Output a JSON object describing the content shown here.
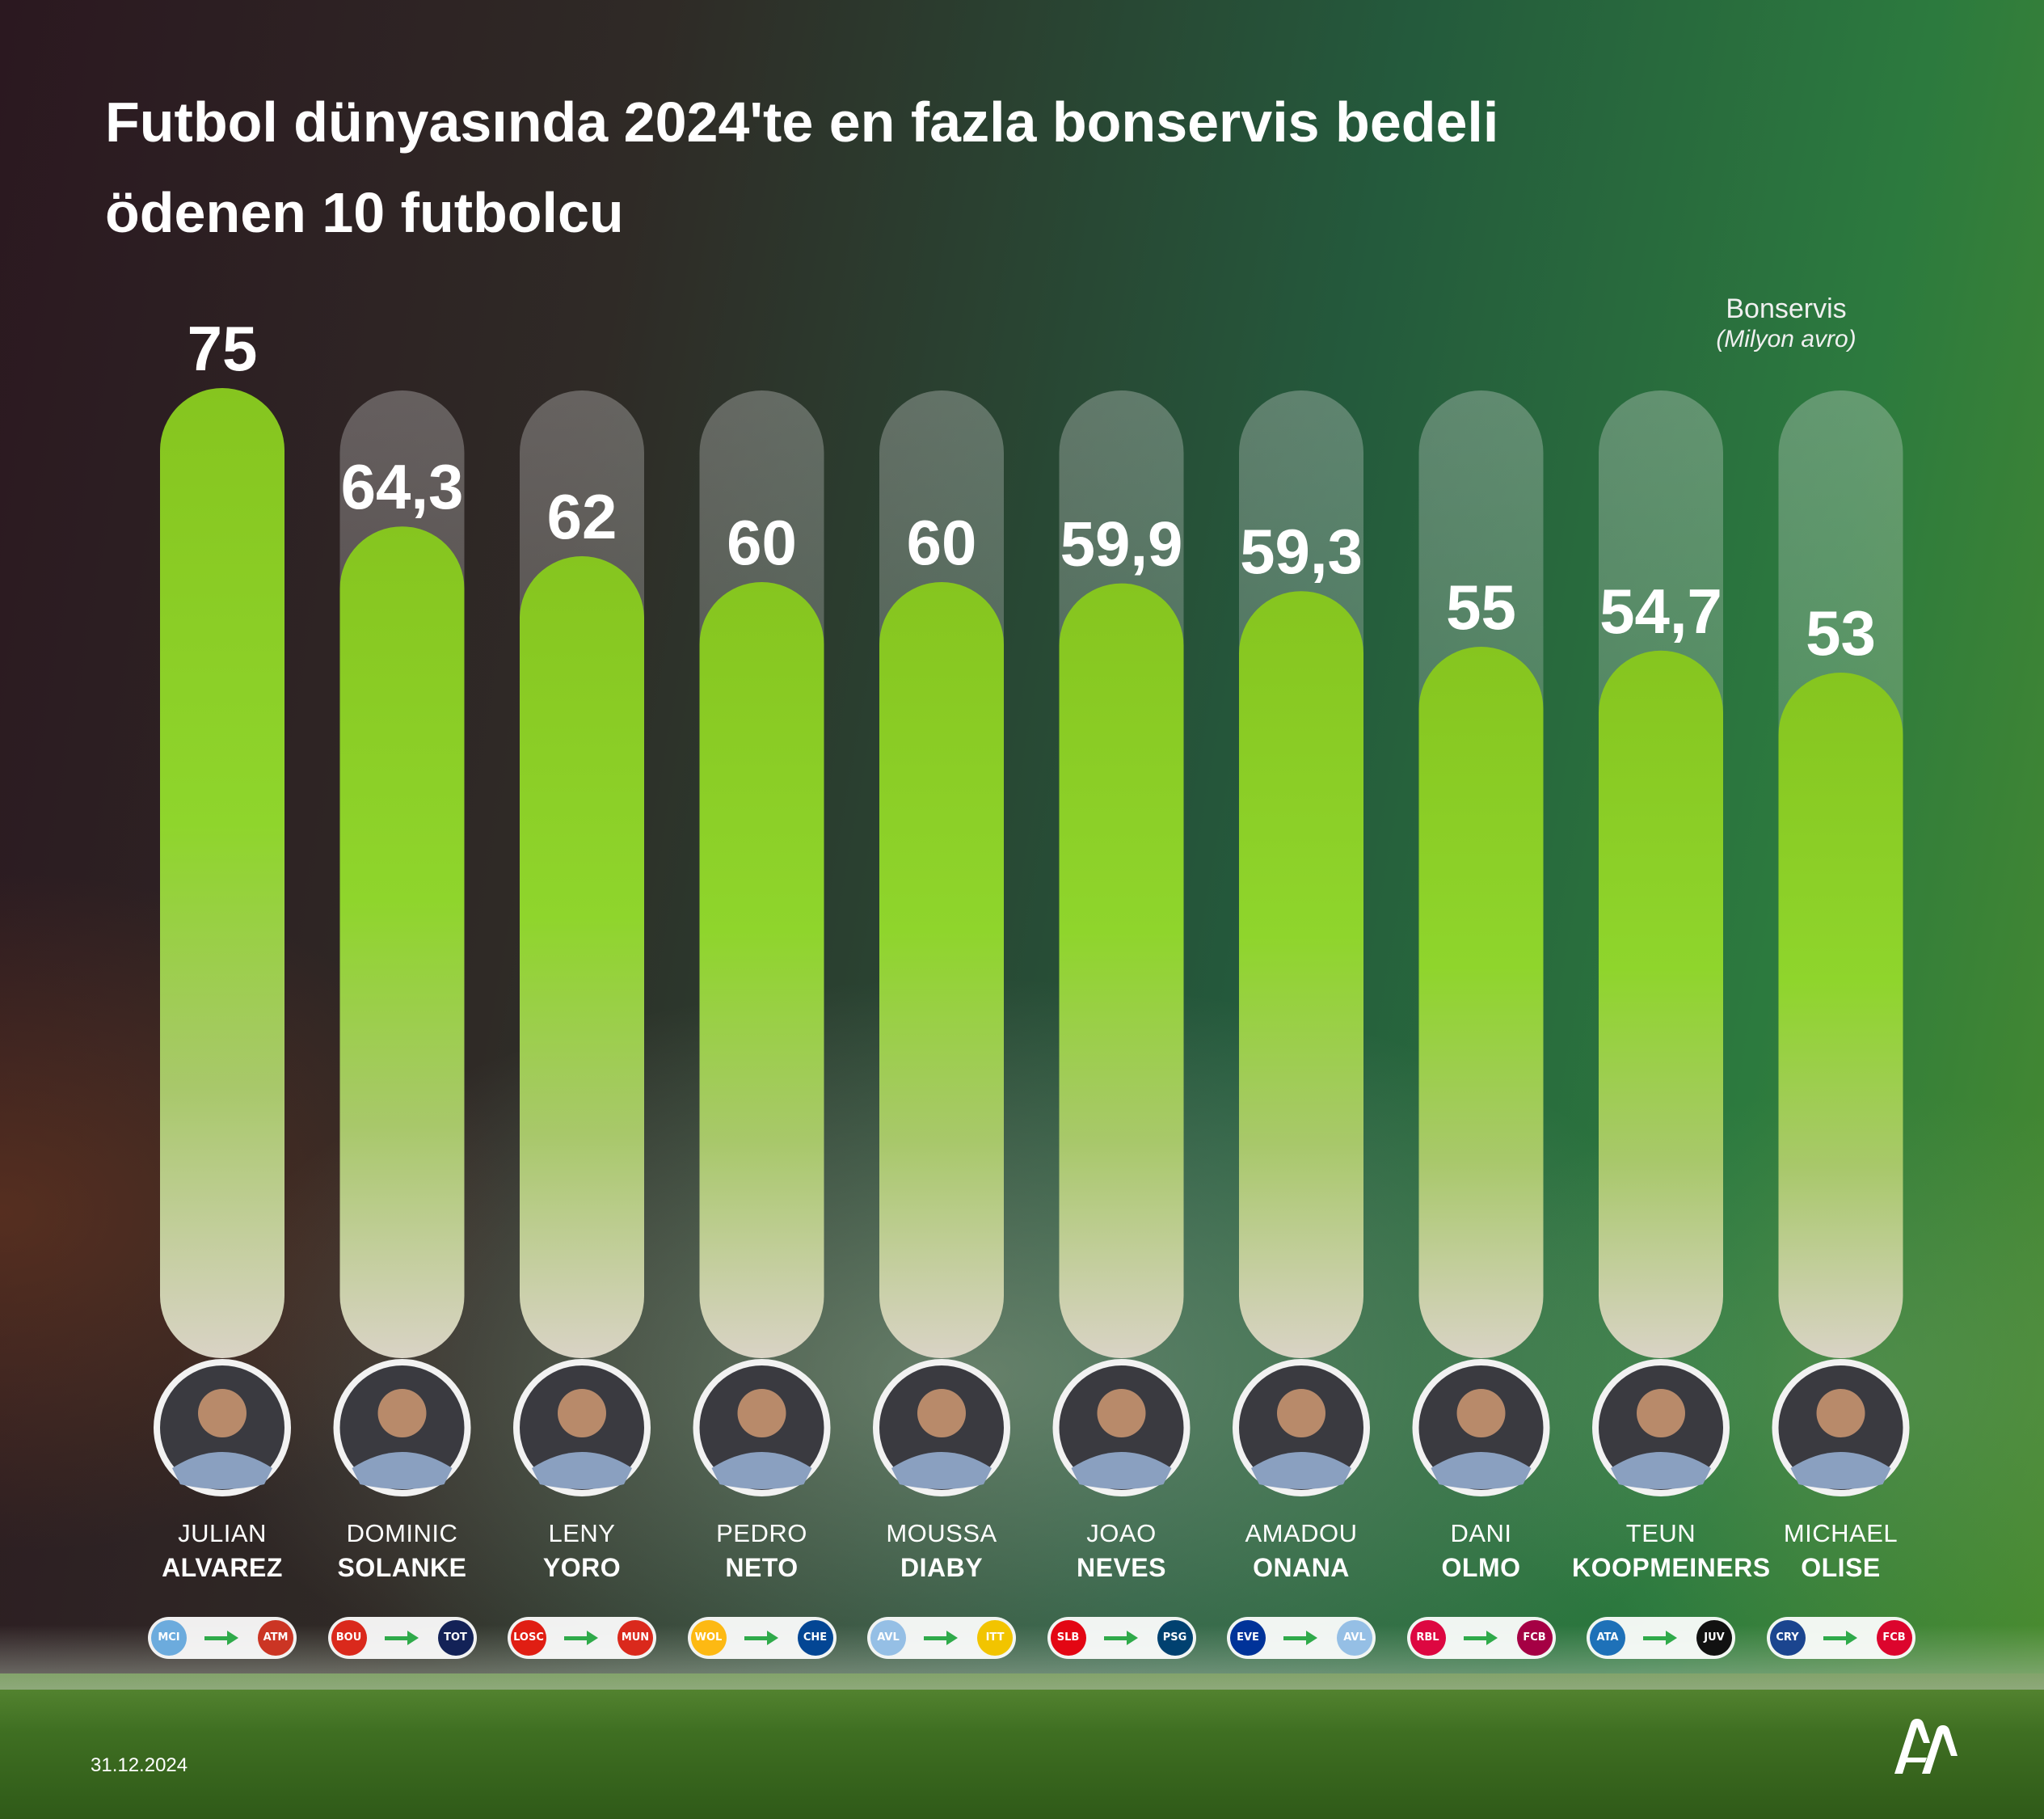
{
  "header": {
    "title": "Futbol dünyasında 2024'te en fazla bonservis bedeli ödenen 10 futbolcu"
  },
  "unit_label": {
    "line1": "Bonservis",
    "line2": "(Milyon avro)"
  },
  "chart_data": {
    "type": "bar",
    "title": "Futbol dünyasında 2024'te en fazla bonservis bedeli ödenen 10 futbolcu",
    "ylabel": "Bonservis (Milyon avro)",
    "ylim": [
      0,
      75
    ],
    "grid": false,
    "categories": [
      "JULIAN ALVAREZ",
      "DOMINIC SOLANKE",
      "LENY YORO",
      "PEDRO NETO",
      "MOUSSA DIABY",
      "JOAO NEVES",
      "AMADOU ONANA",
      "DANI OLMO",
      "TEUN KOOPMEINERS",
      "MICHAEL OLISE"
    ],
    "values": [
      75,
      64.3,
      62,
      60,
      60,
      59.9,
      59.3,
      55,
      54.7,
      53
    ],
    "value_labels": [
      "75",
      "64,3",
      "62",
      "60",
      "60",
      "59,9",
      "59,3",
      "55",
      "54,7",
      "53"
    ],
    "bar_color": "#8ed62a",
    "track_color": "#c8c8c8"
  },
  "players": [
    {
      "first": "JULIAN",
      "last": "ALVAREZ",
      "from_club": "MCI",
      "to_club": "ATM",
      "from_color": "#6cabdd",
      "to_color": "#cb3524"
    },
    {
      "first": "DOMINIC",
      "last": "SOLANKE",
      "from_club": "BOU",
      "to_club": "TOT",
      "from_color": "#da291c",
      "to_color": "#132257"
    },
    {
      "first": "LENY",
      "last": "YORO",
      "from_club": "LOSC",
      "to_club": "MUN",
      "from_color": "#e01e13",
      "to_color": "#da291c"
    },
    {
      "first": "PEDRO",
      "last": "NETO",
      "from_club": "WOL",
      "to_club": "CHE",
      "from_color": "#fdb913",
      "to_color": "#034694"
    },
    {
      "first": "MOUSSA",
      "last": "DIABY",
      "from_club": "AVL",
      "to_club": "ITT",
      "from_color": "#95bfe5",
      "to_color": "#f2c400"
    },
    {
      "first": "JOAO",
      "last": "NEVES",
      "from_club": "SLB",
      "to_club": "PSG",
      "from_color": "#e30613",
      "to_color": "#004170"
    },
    {
      "first": "AMADOU",
      "last": "ONANA",
      "from_club": "EVE",
      "to_club": "AVL",
      "from_color": "#003399",
      "to_color": "#95bfe5"
    },
    {
      "first": "DANI",
      "last": "OLMO",
      "from_club": "RBL",
      "to_club": "FCB",
      "from_color": "#dd0741",
      "to_color": "#a50044"
    },
    {
      "first": "TEUN",
      "last": "KOOPMEINERS",
      "from_club": "ATA",
      "to_club": "JUV",
      "from_color": "#1e71b8",
      "to_color": "#111111"
    },
    {
      "first": "MICHAEL",
      "last": "OLISE",
      "from_club": "CRY",
      "to_club": "FCB",
      "from_color": "#1b458f",
      "to_color": "#dc052d"
    }
  ],
  "footer": {
    "date": "31.12.2024"
  },
  "logo": {
    "icon": "aa-logo-icon"
  }
}
